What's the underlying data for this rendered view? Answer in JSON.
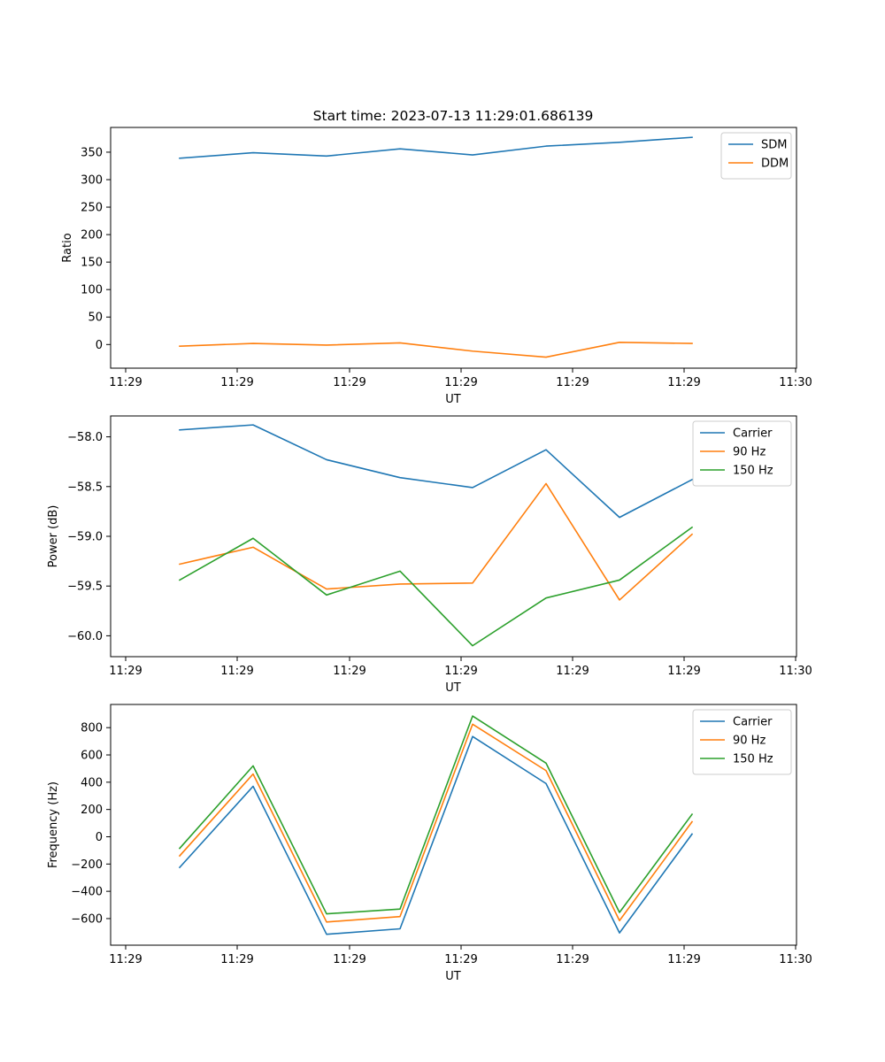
{
  "figure_title": "Start time: 2023-07-13 11:29:01.686139",
  "chart_data": [
    {
      "type": "line",
      "title": "Start time: 2023-07-13 11:29:01.686139",
      "xlabel": "UT",
      "ylabel": "Ratio",
      "x_tick_labels": [
        "11:29",
        "11:29",
        "11:29",
        "11:29",
        "11:29",
        "11:29",
        "11:30"
      ],
      "y_ticks": [
        0,
        50,
        100,
        150,
        200,
        250,
        300,
        350
      ],
      "ylim": [
        -43,
        395
      ],
      "legend_position": "top-right",
      "series": [
        {
          "name": "SDM",
          "color": "#1f77b4",
          "values": [
            339,
            349,
            343,
            356,
            345,
            361,
            368,
            377
          ]
        },
        {
          "name": "DDM",
          "color": "#ff7f0e",
          "values": [
            -3,
            2,
            -1,
            3,
            -12,
            -23,
            4,
            2
          ]
        }
      ]
    },
    {
      "type": "line",
      "title": "",
      "xlabel": "UT",
      "ylabel": "Power (dB)",
      "x_tick_labels": [
        "11:29",
        "11:29",
        "11:29",
        "11:29",
        "11:29",
        "11:29",
        "11:30"
      ],
      "y_ticks": [
        -60.0,
        -59.5,
        -59.0,
        -58.5,
        -58.0
      ],
      "y_tick_labels": [
        "−60.0",
        "−59.5",
        "−59.0",
        "−58.5",
        "−58.0"
      ],
      "ylim": [
        -60.21,
        -57.79
      ],
      "legend_position": "top-right",
      "series": [
        {
          "name": "Carrier",
          "color": "#1f77b4",
          "values": [
            -57.93,
            -57.88,
            -58.23,
            -58.41,
            -58.51,
            -58.13,
            -58.81,
            -58.43
          ]
        },
        {
          "name": "90 Hz",
          "color": "#ff7f0e",
          "values": [
            -59.28,
            -59.11,
            -59.53,
            -59.48,
            -59.47,
            -58.47,
            -59.64,
            -58.98
          ]
        },
        {
          "name": "150 Hz",
          "color": "#2ca02c",
          "values": [
            -59.44,
            -59.02,
            -59.59,
            -59.35,
            -60.1,
            -59.62,
            -59.44,
            -58.91
          ]
        }
      ]
    },
    {
      "type": "line",
      "title": "",
      "xlabel": "UT",
      "ylabel": "Frequency (Hz)",
      "x_tick_labels": [
        "11:29",
        "11:29",
        "11:29",
        "11:29",
        "11:29",
        "11:29",
        "11:30"
      ],
      "y_ticks": [
        -600,
        -400,
        -200,
        0,
        200,
        400,
        600,
        800
      ],
      "y_tick_labels": [
        "−600",
        "−400",
        "−200",
        "0",
        "200",
        "400",
        "600",
        "800"
      ],
      "ylim": [
        -795,
        970
      ],
      "legend_position": "top-right",
      "series": [
        {
          "name": "Carrier",
          "color": "#1f77b4",
          "values": [
            -225,
            370,
            -715,
            -675,
            735,
            390,
            -705,
            20
          ]
        },
        {
          "name": "90 Hz",
          "color": "#ff7f0e",
          "values": [
            -140,
            460,
            -625,
            -585,
            825,
            485,
            -615,
            110
          ]
        },
        {
          "name": "150 Hz",
          "color": "#2ca02c",
          "values": [
            -85,
            520,
            -565,
            -530,
            885,
            540,
            -555,
            165
          ]
        }
      ]
    }
  ]
}
